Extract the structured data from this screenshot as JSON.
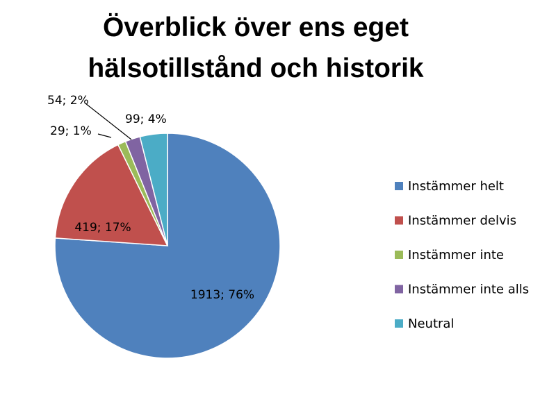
{
  "chart_data": {
    "type": "pie",
    "title_lines": [
      "Överblick över ens eget",
      "hälsotillstånd och historik"
    ],
    "slices": [
      {
        "name": "Instämmer helt",
        "value": 1913,
        "label": "1913; 76%",
        "color": "#4f81bd"
      },
      {
        "name": "Instämmer delvis",
        "value": 419,
        "label": "419; 17%",
        "color": "#c0504d"
      },
      {
        "name": "Instämmer inte",
        "value": 29,
        "label": "29; 1%",
        "color": "#9bbb59"
      },
      {
        "name": "Instämmer inte alls",
        "value": 54,
        "label": "54; 2%",
        "color": "#8064a2"
      },
      {
        "name": "Neutral",
        "value": 99,
        "label": "99; 4%",
        "color": "#4bacc6"
      }
    ],
    "legend_position": "right"
  }
}
